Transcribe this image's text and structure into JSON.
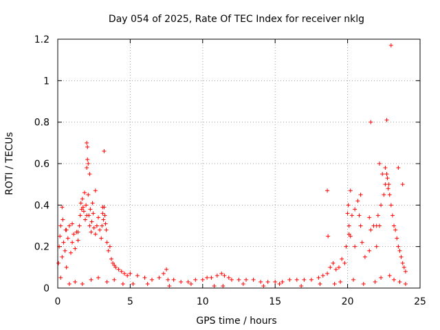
{
  "chart_data": {
    "type": "scatter",
    "title": "Day 054 of 2025, Rate Of TEC Index for receiver nklg",
    "xlabel": "GPS time / hours",
    "ylabel": "ROTI / TECUs",
    "xlim": [
      0,
      25
    ],
    "ylim": [
      0,
      1.2
    ],
    "xticks": [
      0,
      5,
      10,
      15,
      20,
      25
    ],
    "yticks": [
      0,
      0.2,
      0.4,
      0.6,
      0.8,
      1,
      1.2
    ],
    "grid": true,
    "marker": "+",
    "color": "#ff0000",
    "legend": "none",
    "series": [
      {
        "x": [
          0.05,
          0.1,
          0.15,
          0.2,
          0.3,
          0.35,
          0.4,
          0.5,
          0.55,
          0.6,
          0.7,
          0.8,
          0.9,
          1.0,
          1.1,
          1.2,
          1.3,
          1.4,
          1.5,
          1.55,
          1.6,
          1.65,
          1.7,
          1.75,
          1.8,
          1.85,
          1.9,
          1.95,
          2.0,
          2.05,
          2.1,
          2.15,
          2.2,
          2.25,
          2.3,
          2.35,
          2.4,
          2.45,
          2.5,
          2.6,
          2.7,
          2.8,
          2.9,
          3.0,
          3.05,
          3.1,
          3.15,
          3.2,
          3.25,
          3.3,
          3.35,
          3.4,
          3.5,
          3.6,
          3.7,
          3.8,
          3.9,
          4.0,
          4.2,
          4.4,
          4.6,
          4.8,
          5.0,
          5.5,
          6.0,
          6.5,
          7.0,
          7.3,
          7.5,
          7.6,
          8.0,
          8.5,
          9.0,
          9.5,
          10.0,
          10.3,
          10.6,
          11.0,
          11.3,
          11.5,
          11.8,
          12.0,
          12.5,
          13.0,
          13.5,
          14.0,
          14.5,
          15.0,
          15.5,
          16.0,
          16.5,
          17.0,
          17.5,
          18.0,
          18.3,
          18.6,
          18.8,
          19.0,
          19.2,
          19.4,
          19.6,
          19.8,
          19.9,
          20.0,
          20.05,
          20.1,
          20.2,
          20.3,
          20.5,
          20.7,
          20.8,
          20.9,
          21.0,
          21.2,
          21.5,
          21.6,
          21.8,
          22.0,
          22.1,
          22.2,
          22.3,
          22.4,
          22.5,
          22.6,
          22.7,
          22.75,
          22.8,
          22.85,
          22.9,
          23.0,
          23.1,
          23.2,
          23.3,
          23.4,
          23.5,
          23.6,
          23.7,
          23.8,
          23.9,
          24.0,
          0.2,
          0.6,
          1.0,
          1.4,
          2.0,
          2.0,
          2.05,
          2.1,
          2.2,
          2.6,
          3.1,
          3.2,
          18.6,
          18.65,
          20.1,
          20.2,
          20.5,
          20.9,
          21.5,
          21.6,
          22.0,
          22.2,
          22.6,
          22.7,
          23.0,
          23.5,
          23.8,
          0.3,
          0.8,
          1.2,
          1.7,
          2.3,
          2.8,
          3.4,
          3.9,
          4.5,
          5.2,
          6.2,
          7.7,
          9.2,
          10.8,
          11.4,
          12.8,
          14.2,
          15.3,
          16.8,
          18.1,
          19.1,
          19.5,
          20.4,
          21.1,
          21.9,
          22.3,
          22.9,
          23.2,
          23.6,
          24.0
        ],
        "y": [
          0.12,
          0.2,
          0.25,
          0.3,
          0.15,
          0.33,
          0.22,
          0.18,
          0.28,
          0.1,
          0.24,
          0.3,
          0.17,
          0.22,
          0.26,
          0.19,
          0.27,
          0.23,
          0.3,
          0.35,
          0.41,
          0.38,
          0.43,
          0.39,
          0.37,
          0.46,
          0.33,
          0.4,
          0.58,
          0.62,
          0.45,
          0.35,
          0.3,
          0.38,
          0.27,
          0.32,
          0.41,
          0.36,
          0.29,
          0.26,
          0.3,
          0.34,
          0.28,
          0.24,
          0.3,
          0.36,
          0.33,
          0.39,
          0.35,
          0.31,
          0.28,
          0.22,
          0.18,
          0.2,
          0.14,
          0.12,
          0.11,
          0.1,
          0.09,
          0.08,
          0.07,
          0.06,
          0.07,
          0.06,
          0.05,
          0.04,
          0.05,
          0.07,
          0.09,
          0.04,
          0.04,
          0.03,
          0.03,
          0.04,
          0.04,
          0.05,
          0.05,
          0.06,
          0.07,
          0.06,
          0.05,
          0.04,
          0.04,
          0.04,
          0.04,
          0.03,
          0.03,
          0.03,
          0.03,
          0.04,
          0.04,
          0.04,
          0.04,
          0.05,
          0.06,
          0.07,
          0.1,
          0.12,
          0.09,
          0.1,
          0.14,
          0.12,
          0.2,
          0.36,
          0.4,
          0.3,
          0.25,
          0.35,
          0.2,
          0.42,
          0.35,
          0.3,
          0.22,
          0.15,
          0.18,
          0.28,
          0.3,
          0.2,
          0.35,
          0.3,
          0.4,
          0.55,
          0.45,
          0.5,
          0.55,
          0.53,
          0.48,
          0.5,
          0.45,
          0.4,
          0.35,
          0.3,
          0.28,
          0.24,
          0.2,
          0.18,
          0.15,
          0.12,
          0.1,
          0.08,
          0.05,
          0.28,
          0.31,
          0.27,
          0.35,
          0.7,
          0.68,
          0.6,
          0.55,
          0.47,
          0.39,
          0.66,
          0.47,
          0.25,
          0.26,
          0.47,
          0.38,
          0.45,
          0.34,
          0.8,
          0.3,
          0.6,
          0.58,
          0.81,
          1.17,
          0.58,
          0.5,
          0.39,
          0.02,
          0.03,
          0.02,
          0.04,
          0.05,
          0.03,
          0.04,
          0.02,
          0.02,
          0.02,
          0.01,
          0.02,
          0.01,
          0.01,
          0.02,
          0.01,
          0.02,
          0.01,
          0.02,
          0.02,
          0.03,
          0.04,
          0.02,
          0.03,
          0.05,
          0.06,
          0.04,
          0.03,
          0.02
        ]
      }
    ]
  }
}
